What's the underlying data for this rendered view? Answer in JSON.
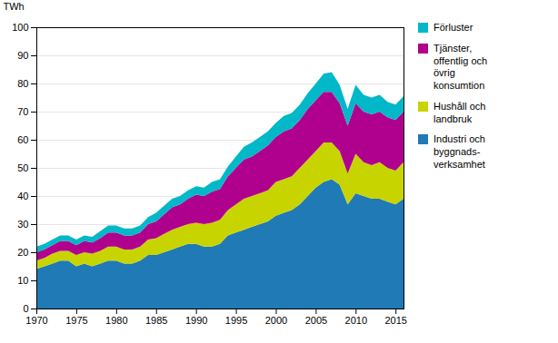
{
  "chart_data": {
    "type": "area",
    "stacked": true,
    "x": [
      1970,
      1971,
      1972,
      1973,
      1974,
      1975,
      1976,
      1977,
      1978,
      1979,
      1980,
      1981,
      1982,
      1983,
      1984,
      1985,
      1986,
      1987,
      1988,
      1989,
      1990,
      1991,
      1992,
      1993,
      1994,
      1995,
      1996,
      1997,
      1998,
      1999,
      2000,
      2001,
      2002,
      2003,
      2004,
      2005,
      2006,
      2007,
      2008,
      2009,
      2010,
      2011,
      2012,
      2013,
      2014,
      2015,
      2016
    ],
    "series": [
      {
        "name": "Industri och\nbyggnads-\nverksamhet",
        "color": "#1f7ab5",
        "values": [
          14,
          15,
          16,
          17,
          17,
          15,
          16,
          15,
          16,
          17,
          17,
          16,
          16,
          17,
          19,
          19,
          20,
          21,
          22,
          23,
          23,
          22,
          22,
          23,
          26,
          27,
          28,
          29,
          30,
          31,
          33,
          34,
          35,
          37,
          40,
          43,
          45,
          46,
          44,
          37,
          41,
          40,
          39,
          39,
          38,
          37,
          39
        ]
      },
      {
        "name": "Hushåll och\nlandbruk",
        "color": "#c8d400",
        "values": [
          3,
          3,
          3.5,
          3.5,
          3.5,
          4,
          4,
          4.5,
          4.5,
          5,
          5,
          5,
          5,
          5,
          5.5,
          6,
          6.5,
          7,
          7,
          7,
          7.5,
          8,
          8.5,
          8.5,
          9,
          10,
          11,
          11,
          11,
          11,
          12,
          12,
          12,
          13,
          13,
          13,
          14,
          13,
          12,
          11,
          14,
          12,
          12,
          13,
          12,
          12,
          13
        ]
      },
      {
        "name": "Tjänster,\noffentlig och\növrig\nkonsumtion",
        "color": "#b0008e",
        "values": [
          3,
          3,
          3,
          3.5,
          3.5,
          3.5,
          4,
          4,
          4.5,
          5,
          5,
          5,
          5,
          5,
          5.5,
          6,
          7,
          8,
          8,
          9,
          10,
          10,
          11,
          11,
          12,
          13,
          14,
          14,
          15,
          16,
          16,
          17,
          17,
          17,
          18,
          18,
          18,
          18,
          17,
          17,
          18,
          18,
          18,
          18,
          18,
          18,
          18
        ]
      },
      {
        "name": "Förluster",
        "color": "#00b8c8",
        "values": [
          2,
          2,
          2,
          2,
          2,
          2,
          2,
          2,
          2.5,
          2.5,
          2.5,
          2.5,
          2.5,
          2.5,
          2.5,
          3,
          3,
          3,
          3,
          3,
          3,
          3,
          3.5,
          3.5,
          3.5,
          4,
          4.5,
          5,
          5,
          5,
          5,
          5.5,
          5.5,
          5.5,
          5.5,
          6,
          6.5,
          7,
          6.5,
          6,
          6.5,
          6,
          6,
          6,
          5.5,
          5.5,
          5.5
        ]
      }
    ],
    "ylabel": "TWh",
    "xlim": [
      1970,
      2016
    ],
    "ylim": [
      0,
      100
    ],
    "xticks": [
      1970,
      1975,
      1980,
      1985,
      1990,
      1995,
      2000,
      2005,
      2010,
      2015
    ],
    "yticks": [
      0,
      10,
      20,
      30,
      40,
      50,
      60,
      70,
      80,
      90,
      100
    ],
    "grid": true,
    "legend": "right"
  }
}
